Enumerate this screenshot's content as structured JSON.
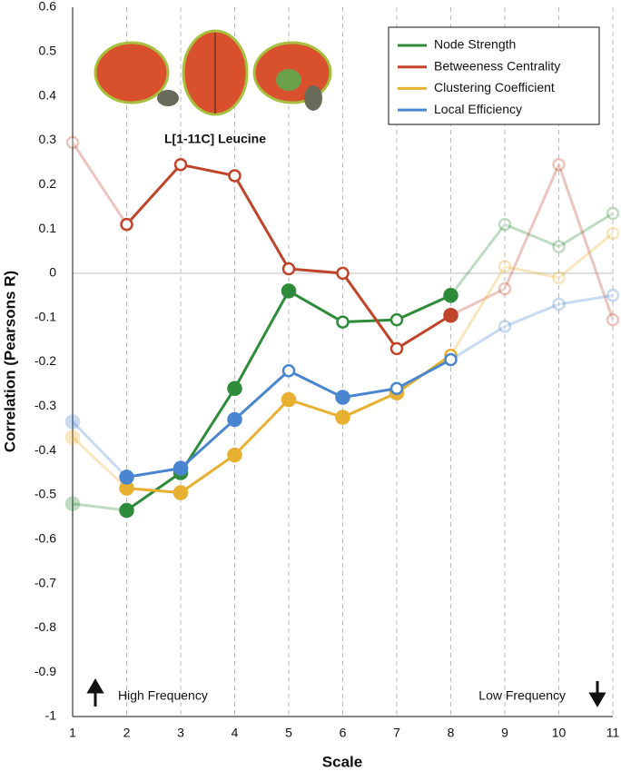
{
  "chart_data": {
    "type": "line",
    "annotations": {
      "image_caption": "L[1-11C] Leucine",
      "left_note": "High Frequency",
      "right_note": "Low Frequency"
    },
    "xlabel": "Scale",
    "ylabel": "Correlation (Pearsons R)",
    "x": [
      1,
      2,
      3,
      4,
      5,
      6,
      7,
      8,
      9,
      10,
      11
    ],
    "xlim": [
      1,
      11
    ],
    "xticks": [
      1,
      2,
      3,
      4,
      5,
      6,
      7,
      8,
      9,
      10,
      11
    ],
    "ylim": [
      -1,
      0.6
    ],
    "yticks": [
      -1,
      -0.9,
      -0.8,
      -0.7,
      -0.6,
      -0.5,
      -0.4,
      -0.3,
      -0.2,
      -0.1,
      0,
      0.1,
      0.2,
      0.3,
      0.4,
      0.5,
      0.6
    ],
    "grid": true,
    "legend": "upper right",
    "highlight_xlim": [
      2,
      8
    ],
    "series": [
      {
        "name": "Node Strength",
        "color": "#2e8b3a",
        "values": [
          -0.52,
          -0.535,
          -0.45,
          -0.26,
          -0.04,
          -0.11,
          -0.105,
          -0.05,
          0.11,
          0.06,
          0.135
        ],
        "marker_open": [
          false,
          false,
          false,
          false,
          false,
          true,
          true,
          false,
          true,
          true,
          true
        ]
      },
      {
        "name": "Betweeness Centrality",
        "color": "#c0442a",
        "values": [
          0.295,
          0.11,
          0.245,
          0.22,
          0.01,
          0.0,
          -0.17,
          -0.095,
          -0.035,
          0.245,
          -0.105
        ],
        "marker_open": [
          true,
          true,
          true,
          true,
          true,
          true,
          true,
          false,
          true,
          true,
          true
        ]
      },
      {
        "name": "Clustering Coefficient",
        "color": "#e8b030",
        "values": [
          -0.37,
          -0.485,
          -0.495,
          -0.41,
          -0.285,
          -0.325,
          -0.27,
          -0.185,
          0.015,
          -0.01,
          0.09
        ],
        "marker_open": [
          false,
          false,
          false,
          false,
          false,
          false,
          false,
          true,
          true,
          true,
          true
        ]
      },
      {
        "name": "Local Efficiency",
        "color": "#4a86d0",
        "values": [
          -0.335,
          -0.46,
          -0.44,
          -0.33,
          -0.22,
          -0.28,
          -0.26,
          -0.195,
          -0.12,
          -0.07,
          -0.05
        ],
        "marker_open": [
          false,
          false,
          false,
          false,
          true,
          false,
          true,
          true,
          true,
          true,
          true
        ]
      }
    ]
  }
}
